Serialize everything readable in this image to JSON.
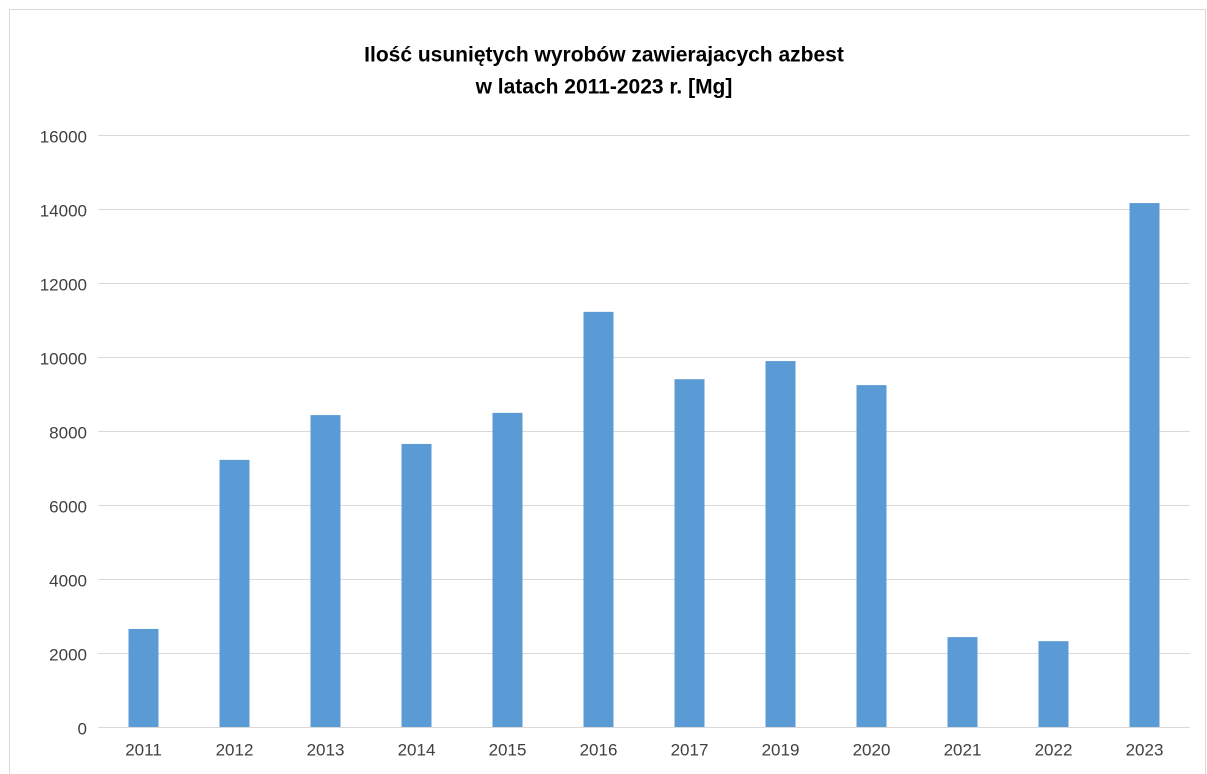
{
  "chart_data": {
    "type": "bar",
    "title": [
      "Ilość usuniętych wyrobów zawierajacych azbest",
      "w latach 2011-2023 r. [Mg]"
    ],
    "categories": [
      "2011",
      "2012",
      "2013",
      "2014",
      "2015",
      "2016",
      "2017",
      "2019",
      "2020",
      "2021",
      "2022",
      "2023"
    ],
    "values": [
      2650,
      7220,
      8430,
      7650,
      8490,
      11220,
      9400,
      9890,
      9240,
      2430,
      2320,
      14160
    ],
    "color": "#5b9bd5",
    "ylim": [
      0,
      16000
    ],
    "yticks": [
      0,
      2000,
      4000,
      6000,
      8000,
      10000,
      12000,
      14000,
      16000
    ],
    "grid": true
  }
}
